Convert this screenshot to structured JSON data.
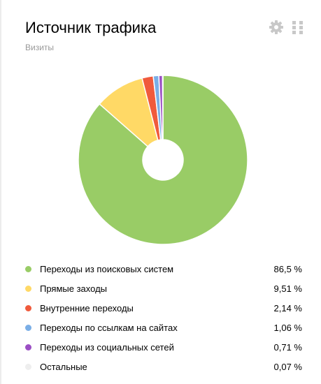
{
  "widget": {
    "title": "Источник трафика",
    "subtitle": "Визиты",
    "icons": [
      "gear-icon",
      "grid-drag-icon"
    ]
  },
  "chart_data": {
    "type": "pie",
    "donut": true,
    "title": "Источник трафика",
    "subtitle": "Визиты",
    "slices": [
      {
        "label": "Переходы из поисковых систем",
        "value": 86.5,
        "value_label": "86,5 %",
        "color": "#99cc66"
      },
      {
        "label": "Прямые заходы",
        "value": 9.51,
        "value_label": "9,51 %",
        "color": "#ffd966"
      },
      {
        "label": "Внутренние переходы",
        "value": 2.14,
        "value_label": "2,14 %",
        "color": "#f05a3c"
      },
      {
        "label": "Переходы по ссылкам на сайтах",
        "value": 1.06,
        "value_label": "1,06 %",
        "color": "#7aaee6"
      },
      {
        "label": "Переходы из социальных сетей",
        "value": 0.71,
        "value_label": "0,71 %",
        "color": "#9b4fc4"
      },
      {
        "label": "Остальные",
        "value": 0.07,
        "value_label": "0,07 %",
        "color": "#eeeeee"
      }
    ],
    "legend_position": "bottom",
    "start_angle": "top",
    "direction": "clockwise"
  }
}
